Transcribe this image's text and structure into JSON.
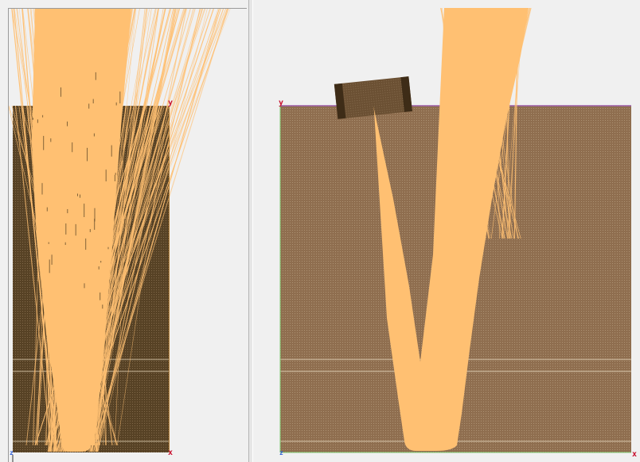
{
  "colors": {
    "background": "#f0f0f0",
    "block_left": "#574225",
    "block_right": "#8f6e4f",
    "cutter": "#6b5033",
    "beam": "#ffc072",
    "frame_top_edge": "#9b5aa6",
    "frame_side_edge": "#7ec96f",
    "axis_x": "#c8102e",
    "axis_y": "#c8102e",
    "axis_z": "#2a5bd7"
  },
  "icons": {
    "origin_marker": "origin-axis-icon"
  },
  "viewports": {
    "left": {
      "axis_labels": {
        "x": "x",
        "y": "y",
        "z": "z"
      }
    },
    "right": {
      "axis_labels": {
        "x": "x",
        "y": "y",
        "z": "z"
      }
    }
  }
}
